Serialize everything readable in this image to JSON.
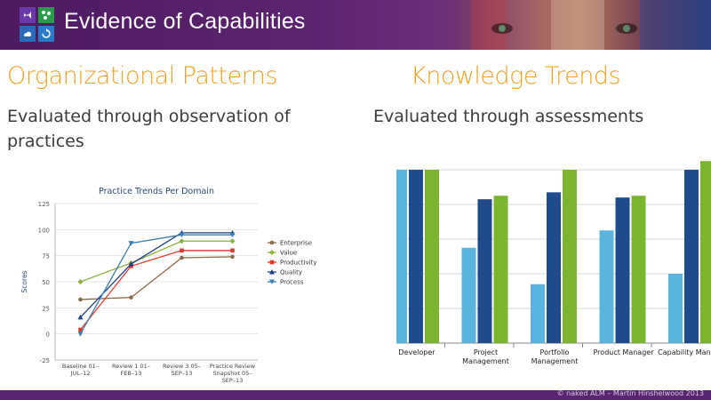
{
  "header": {
    "title": "Evidence of Capabilities",
    "accent_color": "#5c2470"
  },
  "left_section": {
    "title": "Organizational Patterns",
    "subtitle_line1": "Evaluated through observation of",
    "subtitle_line2": "practices"
  },
  "right_section": {
    "title": "Knowledge Trends",
    "subtitle": "Evaluated through assessments"
  },
  "footer": {
    "text": "© naked ALM – Martin Hinshelwood 2013"
  },
  "chart_data": [
    {
      "type": "line",
      "title": "Practice Trends Per Domain",
      "ylabel": "Scores",
      "xlabel": "",
      "categories": [
        "Baseline 01–JUL–12",
        "Review 1 01–FEB–13",
        "Review 3 05–SEP–13",
        "Practice Review Snapshot 05–SEP–13"
      ],
      "category_lines": [
        [
          "Baseline 01–",
          "JUL–12"
        ],
        [
          "Review 1 01–",
          "FEB–13"
        ],
        [
          "Review 3 05–",
          "SEP–13"
        ],
        [
          "Practice Review",
          "Snapshot 05–",
          "SEP–13"
        ]
      ],
      "ylim": [
        -25,
        125
      ],
      "yticks": [
        -25,
        0,
        25,
        50,
        75,
        100,
        125
      ],
      "grid": true,
      "legend": "right",
      "series": [
        {
          "name": "Enterprise",
          "values": [
            33,
            35,
            73,
            74
          ],
          "color": "#8a6a4a",
          "marker": "circle"
        },
        {
          "name": "Value",
          "values": [
            50,
            68,
            89,
            89
          ],
          "color": "#8fb03e",
          "marker": "diamond"
        },
        {
          "name": "Productivity",
          "values": [
            4,
            65,
            80,
            80
          ],
          "color": "#e0392b",
          "marker": "square"
        },
        {
          "name": "Quality",
          "values": [
            16,
            67,
            97,
            97
          ],
          "color": "#1f3f8a",
          "marker": "triangle"
        },
        {
          "name": "Process",
          "values": [
            0,
            87,
            95,
            95
          ],
          "color": "#3a7fb5",
          "marker": "triangle-down"
        }
      ]
    },
    {
      "type": "bar",
      "title": "",
      "categories": [
        "Developer",
        "Project Management",
        "Portfolio Management",
        "Product Manager",
        "Capability Manager"
      ],
      "category_lines": [
        [
          "Developer"
        ],
        [
          "Project",
          "Management"
        ],
        [
          "Portfolio",
          "Management"
        ],
        [
          "Product Manager"
        ],
        [
          "Capability Manager"
        ]
      ],
      "grid": true,
      "series": [
        {
          "name": "",
          "values": [
            100,
            55,
            34,
            65,
            40
          ],
          "color": "#5bb4e0"
        },
        {
          "name": "",
          "values": [
            100,
            83,
            87,
            84,
            100
          ],
          "color": "#1f4a8c"
        },
        {
          "name": "",
          "values": [
            100,
            85,
            100,
            85,
            105
          ],
          "color": "#7bb52f"
        }
      ]
    }
  ]
}
